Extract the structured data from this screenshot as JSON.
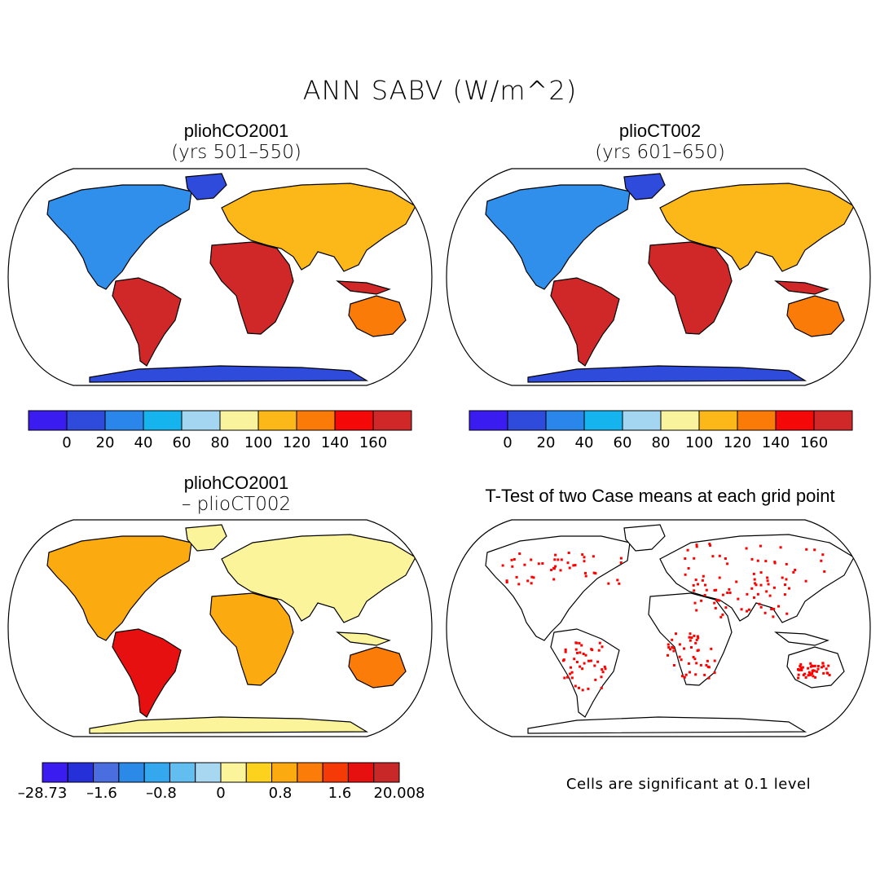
{
  "figure": {
    "title": "ANN SABV (W/m^2)"
  },
  "panels": [
    {
      "id": "case1",
      "title": "pliohCO2001",
      "subtitle": "(yrs 501–550)"
    },
    {
      "id": "case2",
      "title": "plioCT002",
      "subtitle": "(yrs 601–650)"
    },
    {
      "id": "diff",
      "title": "pliohCO2001",
      "subtitle": "– plioCT002"
    },
    {
      "id": "ttest",
      "title": "T-Test of two Case means at each grid point",
      "note": "Cells are significant at 0.1 level"
    }
  ],
  "colorbars": {
    "abs": {
      "colors": [
        "#3a1bf0",
        "#2f4bdc",
        "#2a86ea",
        "#16b4ee",
        "#a4d6f1",
        "#f9f39d",
        "#fbb818",
        "#fb7b08",
        "#f50808",
        "#d02828"
      ],
      "labels": [
        "0",
        "20",
        "40",
        "60",
        "80",
        "100",
        "120",
        "140",
        "160"
      ]
    },
    "diff": {
      "colors": [
        "#3a1bf0",
        "#2530d8",
        "#4a6ee0",
        "#2b8ae8",
        "#34a7ee",
        "#62bdf0",
        "#a8d7f2",
        "#fbf49a",
        "#fcd21e",
        "#fbaa10",
        "#fb7c08",
        "#f53a08",
        "#e61010",
        "#c82828"
      ],
      "labels": [
        "–28.73",
        "–1.6",
        "–0.8",
        "0",
        "0.8",
        "1.6",
        "20.008"
      ]
    }
  },
  "map_colors": {
    "land_outline": "#000000",
    "significance": "#ff0000"
  }
}
